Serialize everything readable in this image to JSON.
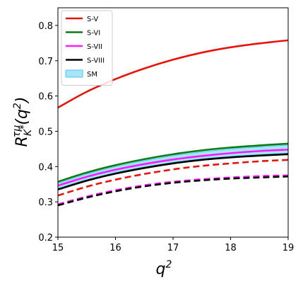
{
  "chart_data": {
    "type": "line",
    "title": "",
    "xlabel": {
      "base": "q",
      "sup": "2"
    },
    "ylabel": {
      "base": "R",
      "sub": "K",
      "subsup": "*",
      "sup": "τμ",
      "arg_open": "(",
      "arg": "q",
      "arg_sup": "2",
      "arg_close": ")"
    },
    "xlim": [
      15,
      19
    ],
    "ylim": [
      0.2,
      0.85
    ],
    "xticks": [
      15,
      16,
      17,
      18,
      19
    ],
    "yticks": [
      0.2,
      0.3,
      0.4,
      0.5,
      0.6,
      0.7,
      0.8
    ],
    "xtick_labels": [
      "15",
      "16",
      "17",
      "18",
      "19"
    ],
    "ytick_labels": [
      "0.2",
      "0.3",
      "0.4",
      "0.5",
      "0.6",
      "0.7",
      "0.8"
    ],
    "grid": false,
    "legend_position": "top-left",
    "x": [
      15,
      15.5,
      16,
      16.5,
      17,
      17.5,
      18,
      18.5,
      19
    ],
    "series": [
      {
        "name": "S-V",
        "color": "#e8140c",
        "style": "solid",
        "values": [
          0.567,
          0.612,
          0.648,
          0.678,
          0.703,
          0.723,
          0.738,
          0.749,
          0.758
        ]
      },
      {
        "name": "S-V",
        "legend": false,
        "color": "#e8140c",
        "style": "dashed",
        "values": [
          0.318,
          0.343,
          0.363,
          0.379,
          0.392,
          0.402,
          0.409,
          0.415,
          0.419
        ]
      },
      {
        "name": "S-VI",
        "color": "#0a7d12",
        "style": "solid",
        "values": [
          0.357,
          0.383,
          0.404,
          0.421,
          0.435,
          0.446,
          0.454,
          0.46,
          0.465
        ]
      },
      {
        "name": "S-VII",
        "color": "#ff19ff",
        "style": "solid",
        "values": [
          0.346,
          0.371,
          0.391,
          0.407,
          0.42,
          0.43,
          0.438,
          0.444,
          0.448
        ]
      },
      {
        "name": "S-VII",
        "legend": false,
        "color": "#ff19ff",
        "style": "dashed",
        "values": [
          0.293,
          0.315,
          0.333,
          0.347,
          0.357,
          0.364,
          0.369,
          0.373,
          0.375
        ]
      },
      {
        "name": "S-VIII",
        "color": "#000000",
        "style": "solid",
        "values": [
          0.335,
          0.36,
          0.38,
          0.396,
          0.409,
          0.419,
          0.426,
          0.431,
          0.435
        ]
      },
      {
        "name": "S-VIII",
        "legend": false,
        "color": "#000000",
        "style": "dashed",
        "values": [
          0.29,
          0.312,
          0.33,
          0.344,
          0.354,
          0.361,
          0.366,
          0.369,
          0.372
        ]
      }
    ],
    "bands": [
      {
        "name": "SM",
        "color": "#87def5",
        "edge_color": "#4fc6ee",
        "lower": [
          0.338,
          0.363,
          0.383,
          0.399,
          0.412,
          0.422,
          0.429,
          0.434,
          0.438
        ],
        "upper": [
          0.353,
          0.379,
          0.4,
          0.417,
          0.431,
          0.442,
          0.45,
          0.456,
          0.461
        ]
      }
    ]
  }
}
